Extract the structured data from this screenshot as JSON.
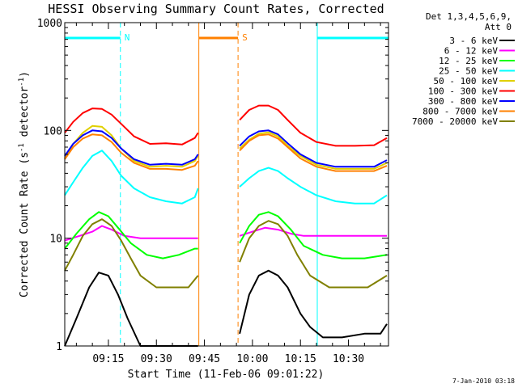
{
  "chart_data": {
    "type": "line",
    "title": "HESSI Observing Summary Count Rates, Corrected",
    "xlabel": "Start Time (11-Feb-06 09:01:22)",
    "ylabel": "Corrected Count Rate (s⁻¹ detector⁻¹)",
    "ylabel_main": "Corrected Count Rate (s",
    "ylabel_sup1": "-1",
    "ylabel_mid": " detector",
    "ylabel_sup2": "-1",
    "ylabel_end": ")",
    "y_scale": "log",
    "ylim": [
      1,
      1000
    ],
    "xlim": [
      "09:01:22",
      "10:42:30"
    ],
    "x_ticks": [
      "09:15",
      "09:30",
      "09:45",
      "10:00",
      "10:15",
      "10:30"
    ],
    "y_ticks": [
      "1",
      "10",
      "100",
      "1000"
    ],
    "legend_header": [
      "Det 1,3,4,5,6,9,",
      "Att 0"
    ],
    "legend_position": "right",
    "data_gap": [
      "09:43:15",
      "09:55:30"
    ],
    "series": [
      {
        "name": "3 - 6 keV",
        "color": "#000000",
        "x": [
          "09:01:22",
          "09:05",
          "09:09",
          "09:12",
          "09:15",
          "09:18",
          "09:21",
          "09:25",
          "09:30",
          "09:35",
          "09:40",
          "09:43",
          "09:56",
          "09:59",
          "10:02",
          "10:05",
          "10:08",
          "10:11",
          "10:15",
          "10:18",
          "10:22",
          "10:28",
          "10:35",
          "10:40",
          "10:42"
        ],
        "values": [
          1.0,
          1.8,
          3.5,
          4.8,
          4.5,
          3.0,
          1.8,
          1.0,
          1.0,
          1.0,
          1.0,
          1.0,
          1.3,
          3.0,
          4.5,
          5.0,
          4.5,
          3.5,
          2.0,
          1.5,
          1.2,
          1.2,
          1.3,
          1.3,
          1.6
        ]
      },
      {
        "name": "6 - 12 keV",
        "color": "#ff00ff",
        "x": [
          "09:01:22",
          "09:06",
          "09:10",
          "09:13",
          "09:16",
          "09:20",
          "09:25",
          "09:30",
          "09:35",
          "09:40",
          "09:43",
          "09:56",
          "10:00",
          "10:04",
          "10:08",
          "10:12",
          "10:16",
          "10:22",
          "10:30",
          "10:36",
          "10:42"
        ],
        "values": [
          9.5,
          10.5,
          11.5,
          13.0,
          12.0,
          10.5,
          10.0,
          10.0,
          10.0,
          10.0,
          10.0,
          10.5,
          11.5,
          12.5,
          12.0,
          11.0,
          10.5,
          10.5,
          10.5,
          10.5,
          10.5
        ]
      },
      {
        "name": "12 - 25 keV",
        "color": "#00ff00",
        "x": [
          "09:01:22",
          "09:05",
          "09:09",
          "09:12",
          "09:15",
          "09:18",
          "09:22",
          "09:27",
          "09:32",
          "09:37",
          "09:42",
          "09:43",
          "09:56",
          "09:59",
          "10:02",
          "10:05",
          "10:08",
          "10:12",
          "10:16",
          "10:22",
          "10:28",
          "10:35",
          "10:42"
        ],
        "values": [
          8.0,
          11.0,
          15.0,
          17.5,
          16.0,
          12.5,
          9.0,
          7.0,
          6.5,
          7.0,
          8.0,
          8.0,
          9.0,
          13.0,
          16.5,
          17.5,
          16.0,
          12.0,
          8.5,
          7.0,
          6.5,
          6.5,
          7.0
        ]
      },
      {
        "name": "25 - 50 keV",
        "color": "#00ffff",
        "x": [
          "09:01:22",
          "09:04",
          "09:07",
          "09:10",
          "09:13",
          "09:16",
          "09:19",
          "09:23",
          "09:28",
          "09:33",
          "09:38",
          "09:42",
          "09:43",
          "09:56",
          "09:59",
          "10:02",
          "10:05",
          "10:08",
          "10:11",
          "10:15",
          "10:20",
          "10:26",
          "10:32",
          "10:38",
          "10:42"
        ],
        "values": [
          25,
          33,
          45,
          58,
          65,
          52,
          38,
          29,
          24,
          22,
          21,
          24,
          29,
          30,
          36,
          42,
          45,
          42,
          36,
          30,
          25,
          22,
          21,
          21,
          25
        ]
      },
      {
        "name": "50 - 100 keV",
        "color": "#e0d000",
        "x": [
          "09:01:22",
          "09:04",
          "09:07",
          "09:10",
          "09:13",
          "09:16",
          "09:19",
          "09:23",
          "09:28",
          "09:33",
          "09:38",
          "09:42",
          "09:43",
          "09:56",
          "09:59",
          "10:02",
          "10:05",
          "10:08",
          "10:11",
          "10:15",
          "10:20",
          "10:26",
          "10:32",
          "10:38",
          "10:42"
        ],
        "values": [
          55,
          75,
          95,
          110,
          108,
          90,
          68,
          52,
          46,
          47,
          46,
          52,
          58,
          68,
          82,
          93,
          96,
          88,
          72,
          58,
          48,
          44,
          44,
          44,
          50
        ]
      },
      {
        "name": "100 - 300 keV",
        "color": "#ff0000",
        "x": [
          "09:01:22",
          "09:04",
          "09:07",
          "09:10",
          "09:13",
          "09:16",
          "09:19",
          "09:23",
          "09:28",
          "09:33",
          "09:38",
          "09:42",
          "09:43",
          "09:56",
          "09:59",
          "10:02",
          "10:05",
          "10:08",
          "10:11",
          "10:15",
          "10:20",
          "10:26",
          "10:32",
          "10:38",
          "10:42"
        ],
        "values": [
          95,
          120,
          145,
          160,
          158,
          140,
          115,
          88,
          75,
          76,
          74,
          85,
          95,
          125,
          155,
          170,
          170,
          155,
          125,
          95,
          78,
          72,
          72,
          73,
          85
        ]
      },
      {
        "name": "300 - 800 keV",
        "color": "#0000ff",
        "x": [
          "09:01:22",
          "09:04",
          "09:07",
          "09:10",
          "09:13",
          "09:16",
          "09:19",
          "09:23",
          "09:28",
          "09:33",
          "09:38",
          "09:42",
          "09:43",
          "09:56",
          "09:59",
          "10:02",
          "10:05",
          "10:08",
          "10:11",
          "10:15",
          "10:20",
          "10:26",
          "10:32",
          "10:38",
          "10:42"
        ],
        "values": [
          58,
          75,
          90,
          100,
          98,
          85,
          68,
          54,
          48,
          49,
          48,
          54,
          60,
          72,
          88,
          98,
          100,
          92,
          76,
          60,
          50,
          46,
          46,
          46,
          53
        ]
      },
      {
        "name": "800 - 7000 keV",
        "color": "#ff8000",
        "x": [
          "09:01:22",
          "09:04",
          "09:07",
          "09:10",
          "09:13",
          "09:16",
          "09:19",
          "09:23",
          "09:28",
          "09:33",
          "09:38",
          "09:42",
          "09:43",
          "09:56",
          "09:59",
          "10:02",
          "10:05",
          "10:08",
          "10:11",
          "10:15",
          "10:20",
          "10:26",
          "10:32",
          "10:38",
          "10:42"
        ],
        "values": [
          54,
          70,
          84,
          92,
          90,
          78,
          62,
          50,
          44,
          44,
          43,
          47,
          52,
          65,
          80,
          90,
          92,
          84,
          70,
          55,
          46,
          42,
          42,
          42,
          47
        ]
      },
      {
        "name": "7000 - 20000 keV",
        "color": "#808000",
        "x": [
          "09:01:22",
          "09:04",
          "09:07",
          "09:10",
          "09:13",
          "09:16",
          "09:19",
          "09:22",
          "09:25",
          "09:30",
          "09:35",
          "09:40",
          "09:43",
          "09:56",
          "09:59",
          "10:02",
          "10:05",
          "10:08",
          "10:11",
          "10:14",
          "10:18",
          "10:24",
          "10:30",
          "10:36",
          "10:42"
        ],
        "values": [
          5.0,
          7.0,
          10.5,
          13.5,
          15.0,
          13.0,
          9.5,
          6.5,
          4.5,
          3.5,
          3.5,
          3.5,
          4.5,
          6.0,
          10.0,
          13.0,
          14.5,
          13.5,
          10.5,
          7.0,
          4.5,
          3.5,
          3.5,
          3.5,
          4.5
        ]
      }
    ],
    "annotations": [
      {
        "label": "N",
        "color": "#00ffff",
        "bars": [
          [
            "09:01:22",
            "09:18:45"
          ],
          [
            "10:20:15",
            "10:42:30"
          ]
        ],
        "boundaries": [
          "09:01:22",
          "09:18:45",
          "10:20:15",
          "10:42:30"
        ],
        "dashed": [
          "09:18:45",
          "10:42:30"
        ]
      },
      {
        "label": "S",
        "color": "#ff8000",
        "bars": [
          [
            "09:43:15",
            "09:55:30"
          ]
        ],
        "boundaries": [
          "09:43:15",
          "09:55:30"
        ],
        "dashed": [
          "09:55:30"
        ]
      }
    ]
  },
  "footer": {
    "timestamp": "7-Jan-2010 03:18"
  }
}
